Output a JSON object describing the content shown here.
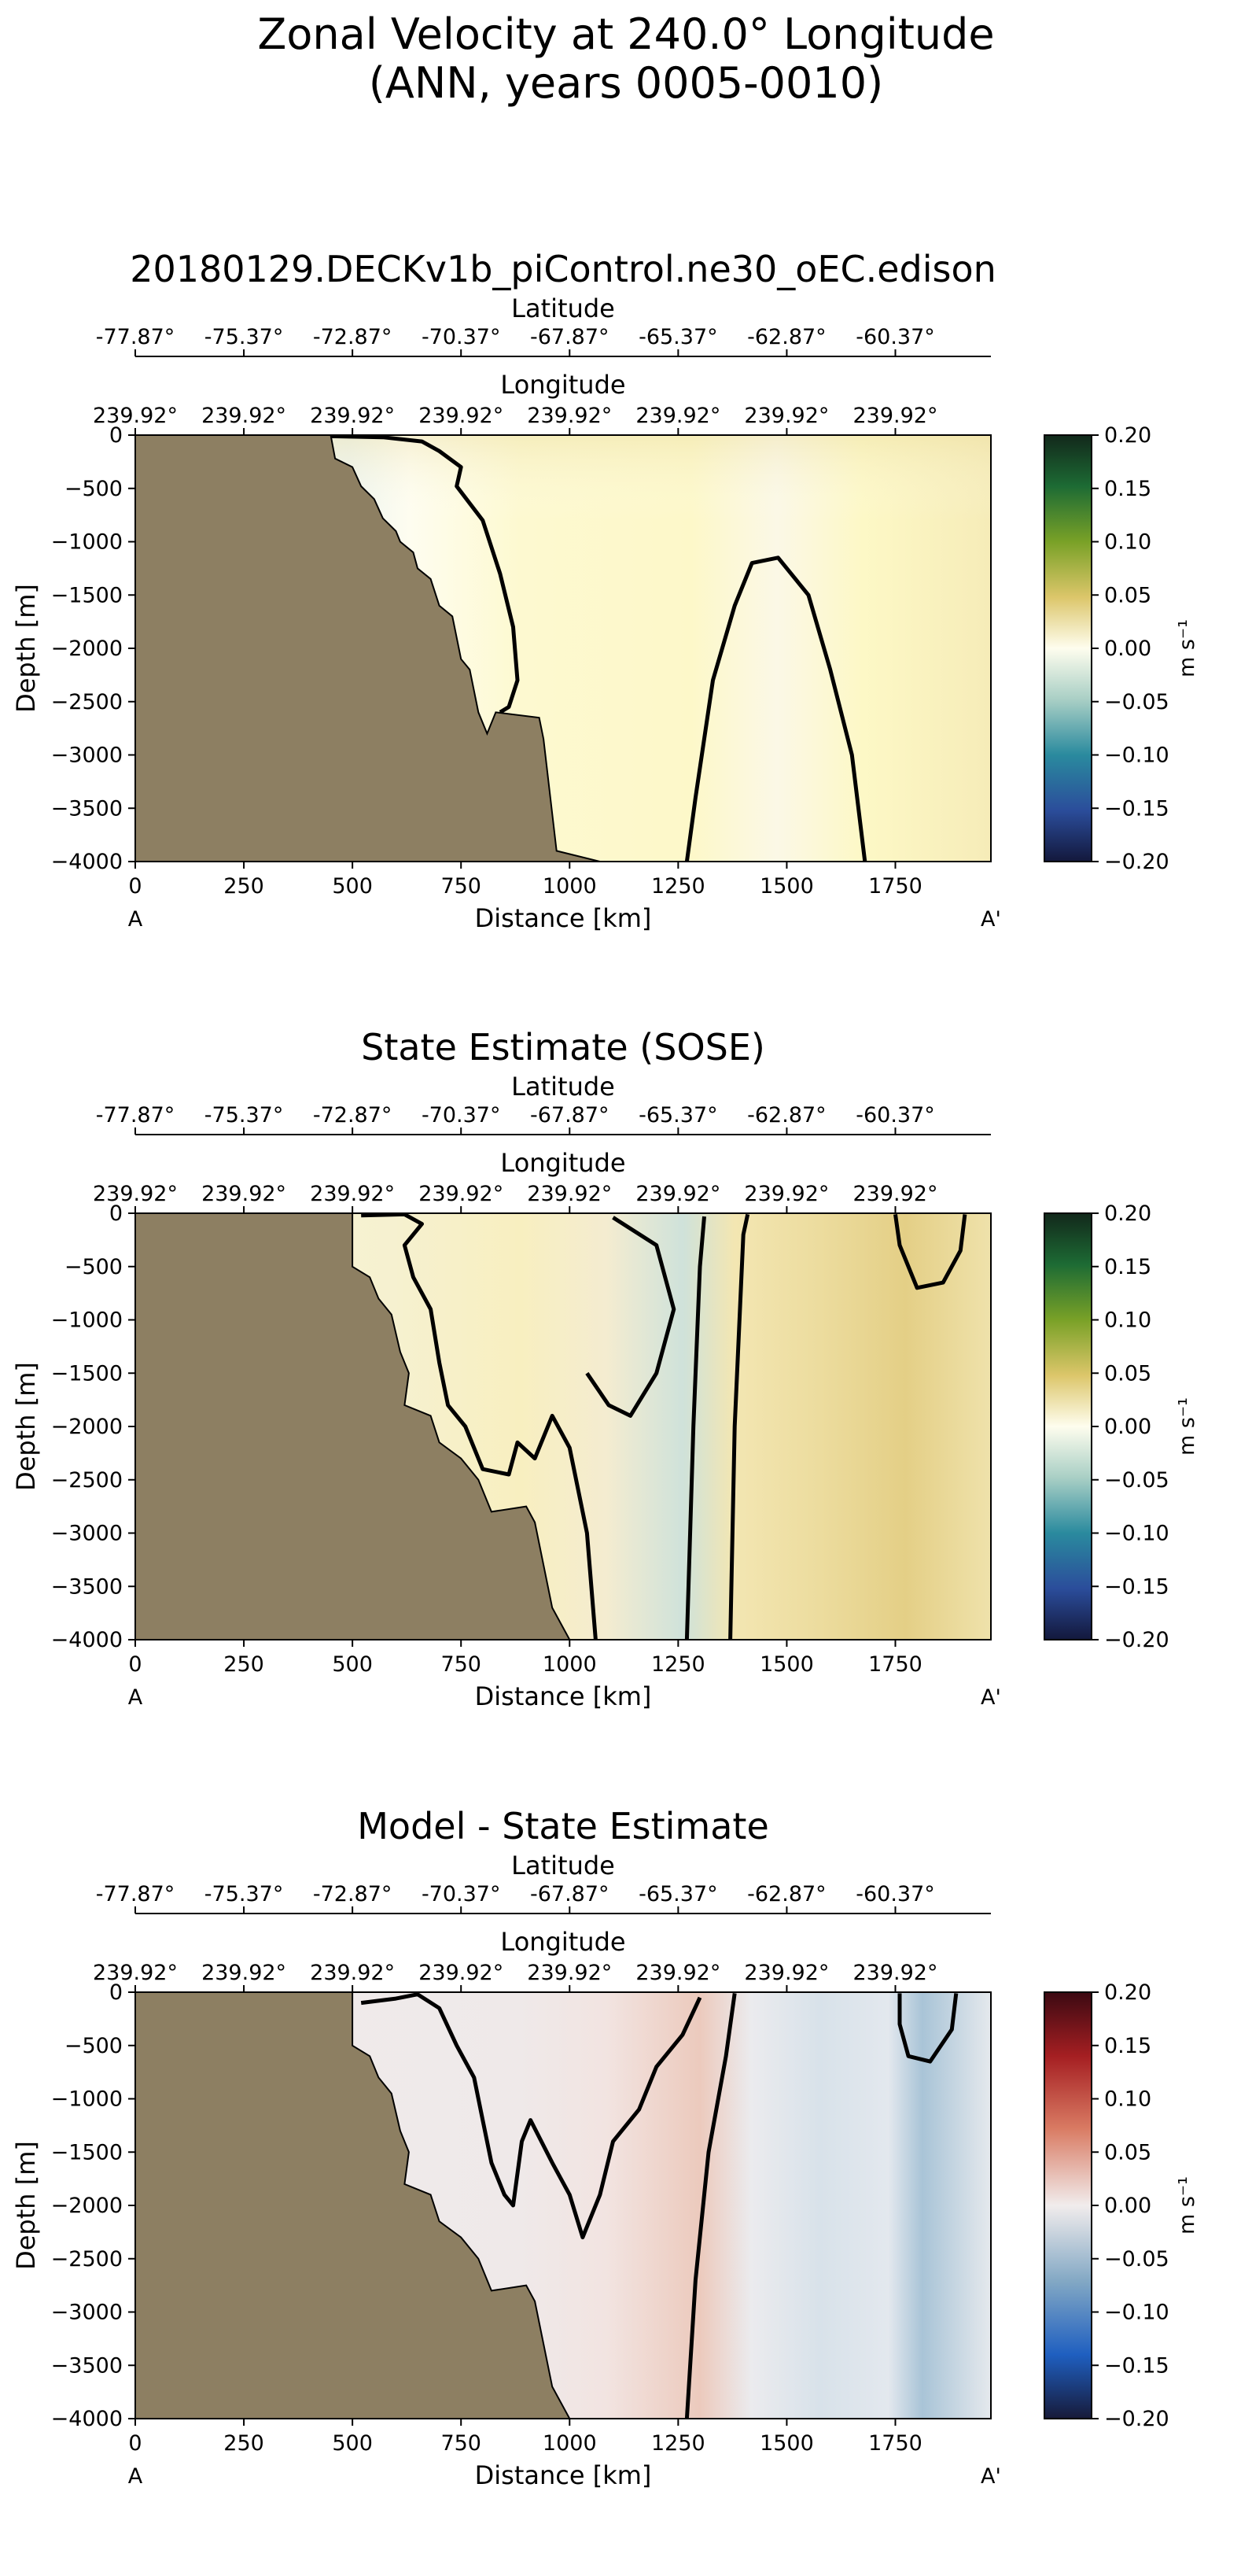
{
  "title_line1": "Zonal Velocity at 240.0° Longitude",
  "title_line2": "(ANN, years 0005-0010)",
  "common": {
    "top_axis_label": "Latitude",
    "second_axis_label": "Longitude",
    "ylabel": "Depth [m]",
    "xlabel": "Distance [km]",
    "start_label": "A",
    "end_label": "A'",
    "lat_ticks": [
      "-77.87°",
      "-75.37°",
      "-72.87°",
      "-70.37°",
      "-67.87°",
      "-65.37°",
      "-62.87°",
      "-60.37°"
    ],
    "lon_ticks": [
      "239.92°",
      "239.92°",
      "239.92°",
      "239.92°",
      "239.92°",
      "239.92°",
      "239.92°",
      "239.92°"
    ],
    "colorbar_units": "m s⁻¹"
  },
  "chart_data": [
    {
      "type": "heatmap",
      "title": "20180129.DECKv1b_piControl.ne30_oEC.edison",
      "xlabel": "Distance [km]",
      "ylabel": "Depth [m]",
      "x_ticks": [
        0,
        250,
        500,
        750,
        1000,
        1250,
        1500,
        1750
      ],
      "y_ticks": [
        0,
        -500,
        -1000,
        -1500,
        -2000,
        -2500,
        -3000,
        -3500,
        -4000
      ],
      "xlim": [
        0,
        1970
      ],
      "ylim": [
        -4000,
        0
      ],
      "colormap": "delta",
      "colorbar_ticks": [
        "0.20",
        "0.15",
        "0.10",
        "0.05",
        "0.00",
        "−0.05",
        "−0.10",
        "−0.15",
        "−0.20"
      ],
      "colorbar_range": [
        -0.2,
        0.2
      ],
      "colorbar_label": "m s⁻¹",
      "bathymetry": [
        [
          0,
          0
        ],
        [
          450,
          0
        ],
        [
          460,
          -220
        ],
        [
          500,
          -300
        ],
        [
          520,
          -480
        ],
        [
          550,
          -600
        ],
        [
          570,
          -780
        ],
        [
          600,
          -900
        ],
        [
          610,
          -1000
        ],
        [
          640,
          -1100
        ],
        [
          650,
          -1250
        ],
        [
          680,
          -1350
        ],
        [
          700,
          -1600
        ],
        [
          730,
          -1700
        ],
        [
          750,
          -2100
        ],
        [
          770,
          -2200
        ],
        [
          790,
          -2600
        ],
        [
          810,
          -2800
        ],
        [
          830,
          -2600
        ],
        [
          930,
          -2650
        ],
        [
          940,
          -2850
        ],
        [
          970,
          -3900
        ],
        [
          1070,
          -4000
        ]
      ],
      "zero_contours": [
        [
          [
            450,
            -10
          ],
          [
            570,
            -20
          ],
          [
            660,
            -60
          ],
          [
            700,
            -150
          ],
          [
            750,
            -300
          ],
          [
            740,
            -480
          ],
          [
            800,
            -800
          ],
          [
            840,
            -1300
          ],
          [
            870,
            -1800
          ],
          [
            880,
            -2300
          ],
          [
            860,
            -2550
          ],
          [
            840,
            -2600
          ]
        ],
        [
          [
            1270,
            -4000
          ],
          [
            1290,
            -3400
          ],
          [
            1330,
            -2300
          ],
          [
            1380,
            -1600
          ],
          [
            1420,
            -1200
          ],
          [
            1480,
            -1150
          ],
          [
            1550,
            -1500
          ],
          [
            1600,
            -2200
          ],
          [
            1650,
            -3000
          ],
          [
            1680,
            -4000
          ]
        ]
      ]
    },
    {
      "type": "heatmap",
      "title": "State Estimate (SOSE)",
      "xlabel": "Distance [km]",
      "ylabel": "Depth [m]",
      "x_ticks": [
        0,
        250,
        500,
        750,
        1000,
        1250,
        1500,
        1750
      ],
      "y_ticks": [
        0,
        -500,
        -1000,
        -1500,
        -2000,
        -2500,
        -3000,
        -3500,
        -4000
      ],
      "xlim": [
        0,
        1970
      ],
      "ylim": [
        -4000,
        0
      ],
      "colormap": "delta",
      "colorbar_ticks": [
        "0.20",
        "0.15",
        "0.10",
        "0.05",
        "0.00",
        "−0.05",
        "−0.10",
        "−0.15",
        "−0.20"
      ],
      "colorbar_range": [
        -0.2,
        0.2
      ],
      "colorbar_label": "m s⁻¹",
      "bathymetry": [
        [
          0,
          0
        ],
        [
          500,
          0
        ],
        [
          500,
          -500
        ],
        [
          540,
          -600
        ],
        [
          560,
          -800
        ],
        [
          590,
          -950
        ],
        [
          610,
          -1300
        ],
        [
          630,
          -1500
        ],
        [
          620,
          -1800
        ],
        [
          680,
          -1900
        ],
        [
          700,
          -2150
        ],
        [
          750,
          -2300
        ],
        [
          790,
          -2500
        ],
        [
          820,
          -2800
        ],
        [
          900,
          -2750
        ],
        [
          920,
          -2900
        ],
        [
          960,
          -3700
        ],
        [
          1000,
          -4000
        ]
      ],
      "zero_contours": [
        [
          [
            520,
            -20
          ],
          [
            620,
            -10
          ],
          [
            660,
            -100
          ],
          [
            620,
            -300
          ],
          [
            640,
            -600
          ],
          [
            680,
            -900
          ],
          [
            700,
            -1400
          ],
          [
            720,
            -1800
          ],
          [
            760,
            -2000
          ],
          [
            800,
            -2400
          ],
          [
            860,
            -2450
          ],
          [
            880,
            -2150
          ],
          [
            920,
            -2300
          ],
          [
            960,
            -1900
          ],
          [
            1000,
            -2200
          ],
          [
            1040,
            -3000
          ],
          [
            1060,
            -4000
          ]
        ],
        [
          [
            1100,
            -40
          ],
          [
            1200,
            -300
          ],
          [
            1240,
            -900
          ],
          [
            1200,
            -1500
          ],
          [
            1140,
            -1900
          ],
          [
            1090,
            -1800
          ],
          [
            1040,
            -1500
          ]
        ],
        [
          [
            1270,
            -4000
          ],
          [
            1285,
            -2000
          ],
          [
            1300,
            -500
          ],
          [
            1310,
            -30
          ]
        ],
        [
          [
            1370,
            -4000
          ],
          [
            1380,
            -2000
          ],
          [
            1400,
            -200
          ],
          [
            1410,
            -10
          ]
        ],
        [
          [
            1750,
            -10
          ],
          [
            1760,
            -300
          ],
          [
            1800,
            -700
          ],
          [
            1860,
            -650
          ],
          [
            1900,
            -350
          ],
          [
            1910,
            -10
          ]
        ]
      ]
    },
    {
      "type": "heatmap",
      "title": "Model - State Estimate",
      "xlabel": "Distance [km]",
      "ylabel": "Depth [m]",
      "x_ticks": [
        0,
        250,
        500,
        750,
        1000,
        1250,
        1500,
        1750
      ],
      "y_ticks": [
        0,
        -500,
        -1000,
        -1500,
        -2000,
        -2500,
        -3000,
        -3500,
        -4000
      ],
      "xlim": [
        0,
        1970
      ],
      "ylim": [
        -4000,
        0
      ],
      "colormap": "balance",
      "colorbar_ticks": [
        "0.20",
        "0.15",
        "0.10",
        "0.05",
        "0.00",
        "−0.05",
        "−0.10",
        "−0.15",
        "−0.20"
      ],
      "colorbar_range": [
        -0.2,
        0.2
      ],
      "colorbar_label": "m s⁻¹",
      "bathymetry": [
        [
          0,
          0
        ],
        [
          500,
          0
        ],
        [
          500,
          -500
        ],
        [
          540,
          -600
        ],
        [
          560,
          -800
        ],
        [
          590,
          -950
        ],
        [
          610,
          -1300
        ],
        [
          630,
          -1500
        ],
        [
          620,
          -1800
        ],
        [
          680,
          -1900
        ],
        [
          700,
          -2150
        ],
        [
          750,
          -2300
        ],
        [
          790,
          -2500
        ],
        [
          820,
          -2800
        ],
        [
          900,
          -2750
        ],
        [
          920,
          -2900
        ],
        [
          960,
          -3700
        ],
        [
          1000,
          -4000
        ]
      ],
      "zero_contours": [
        [
          [
            520,
            -100
          ],
          [
            600,
            -60
          ],
          [
            650,
            -20
          ],
          [
            700,
            -150
          ],
          [
            740,
            -500
          ],
          [
            780,
            -800
          ],
          [
            800,
            -1200
          ],
          [
            820,
            -1600
          ],
          [
            850,
            -1900
          ],
          [
            870,
            -2000
          ],
          [
            890,
            -1400
          ],
          [
            910,
            -1200
          ],
          [
            960,
            -1600
          ],
          [
            1000,
            -1900
          ],
          [
            1030,
            -2300
          ],
          [
            1070,
            -1900
          ],
          [
            1100,
            -1400
          ],
          [
            1160,
            -1100
          ],
          [
            1200,
            -700
          ],
          [
            1260,
            -400
          ],
          [
            1300,
            -50
          ]
        ],
        [
          [
            1270,
            -4000
          ],
          [
            1290,
            -2700
          ],
          [
            1320,
            -1500
          ],
          [
            1360,
            -600
          ],
          [
            1380,
            -10
          ]
        ],
        [
          [
            1760,
            -10
          ],
          [
            1760,
            -300
          ],
          [
            1780,
            -600
          ],
          [
            1830,
            -650
          ],
          [
            1880,
            -350
          ],
          [
            1890,
            -10
          ]
        ]
      ]
    }
  ]
}
